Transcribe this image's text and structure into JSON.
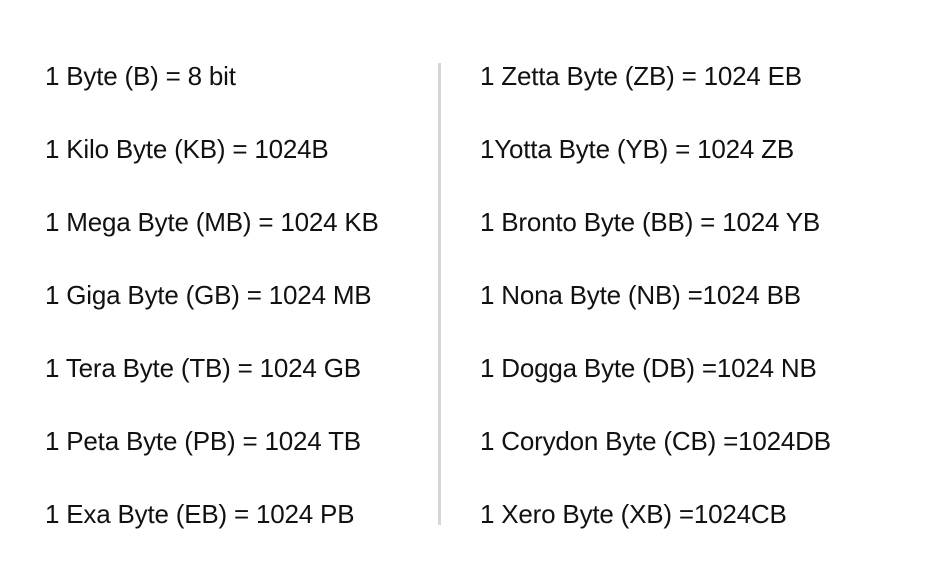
{
  "left_column": [
    "1 Byte (B) = 8 bit",
    "1 Kilo Byte (KB) = 1024B",
    "1 Mega Byte (MB) = 1024 KB",
    "1 Giga Byte (GB) = 1024 MB",
    "1 Tera Byte (TB) = 1024 GB",
    "1 Peta Byte (PB) = 1024 TB",
    "1 Exa Byte (EB) = 1024 PB"
  ],
  "right_column": [
    "1 Zetta Byte (ZB) = 1024 EB",
    "1Yotta Byte (YB) = 1024 ZB",
    "1 Bronto Byte (BB) = 1024 YB",
    "1 Nona Byte (NB) =1024 BB",
    "1 Dogga Byte (DB) =1024 NB",
    "1 Corydon Byte (CB) =1024DB",
    "1 Xero Byte (XB) =1024CB"
  ]
}
